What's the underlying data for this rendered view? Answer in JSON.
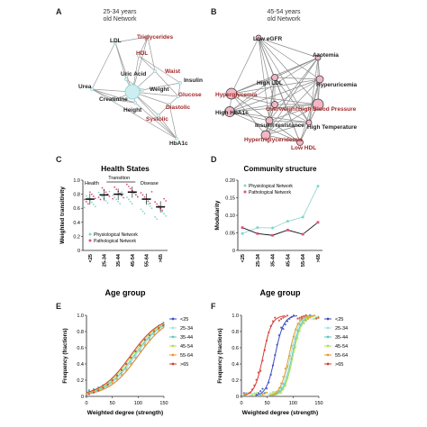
{
  "panel_a": {
    "letter": "A",
    "title_line1": "25-34 years",
    "title_line2": "old Network",
    "nodes": [
      {
        "label": "LDL",
        "color": "dark"
      },
      {
        "label": "Triglycerides",
        "color": "red"
      },
      {
        "label": "HDL",
        "color": "red"
      },
      {
        "label": "Waist",
        "color": "red"
      },
      {
        "label": "Uric Acid",
        "color": "dark"
      },
      {
        "label": "Insulin",
        "color": "dark"
      },
      {
        "label": "Urea",
        "color": "dark"
      },
      {
        "label": "Weight",
        "color": "dark"
      },
      {
        "label": "Glucose",
        "color": "red"
      },
      {
        "label": "Creatinine",
        "color": "dark"
      },
      {
        "label": "Height",
        "color": "dark"
      },
      {
        "label": "Diastolic",
        "color": "red"
      },
      {
        "label": "Systolic",
        "color": "red"
      },
      {
        "label": "HbA1c",
        "color": "dark"
      }
    ]
  },
  "panel_b": {
    "letter": "B",
    "title_line1": "45-54 years",
    "title_line2": "old Network",
    "nodes": [
      {
        "label": "Low eGFR",
        "color": "dark"
      },
      {
        "label": "Azotemia",
        "color": "dark"
      },
      {
        "label": "High LDL",
        "color": "dark"
      },
      {
        "label": "Hyperuricemia",
        "color": "dark"
      },
      {
        "label": "Hyperglycemia",
        "color": "red"
      },
      {
        "label": "High HbA1c",
        "color": "dark"
      },
      {
        "label": "Overweight",
        "color": "red"
      },
      {
        "label": "High Blood Pressure",
        "color": "red"
      },
      {
        "label": "Insulin resistance",
        "color": "dark"
      },
      {
        "label": "High Temperature",
        "color": "dark"
      },
      {
        "label": "Hypertriglyceridemia",
        "color": "red"
      },
      {
        "label": "Low HDL",
        "color": "red"
      }
    ]
  },
  "chart_data": [
    {
      "panel": "C",
      "type": "scatter",
      "title": "Health States",
      "ylabel": "Weighted transitivity",
      "xlabel": "Age group",
      "categories": [
        "<25",
        "25-34",
        "35-44",
        "45-54",
        "55-64",
        ">65"
      ],
      "ylim": [
        0,
        1
      ],
      "yticks": [
        "0",
        "0.2",
        "0.4",
        "0.6",
        "0.8",
        "1.0"
      ],
      "annotations": [
        "Health",
        "Transition",
        "Disease"
      ],
      "series": [
        {
          "name": "Physiological Network",
          "color": "#7fd6cf",
          "values": [
            0.7,
            0.75,
            0.74,
            0.74,
            0.6,
            0.52
          ]
        },
        {
          "name": "Pathological Network",
          "color": "#d9547a",
          "values": [
            0.74,
            0.8,
            0.81,
            0.85,
            0.76,
            0.66
          ]
        }
      ],
      "means": [
        0.73,
        0.79,
        0.8,
        0.83,
        0.73,
        0.62
      ]
    },
    {
      "panel": "D",
      "type": "line",
      "title": "Community structure",
      "ylabel": "Modularity",
      "xlabel": "Age group",
      "categories": [
        "<25",
        "25-34",
        "35-44",
        "45-54",
        "55-64",
        ">65"
      ],
      "ylim": [
        0,
        0.2
      ],
      "yticks": [
        "0",
        "0.05",
        "0.10",
        "0.15",
        "0.20"
      ],
      "series": [
        {
          "name": "Physiological Network",
          "color": "#7fd6cf",
          "values": [
            0.048,
            0.065,
            0.064,
            0.083,
            0.095,
            0.183
          ]
        },
        {
          "name": "Pathological Network",
          "color": "#d9547a",
          "values": [
            0.065,
            0.048,
            0.043,
            0.058,
            0.046,
            0.08
          ]
        }
      ]
    },
    {
      "panel": "E",
      "type": "scatter",
      "ylabel": "Frequency (fractions)",
      "xlabel": "Weighted degree (strength)",
      "xlim": [
        0,
        150
      ],
      "ylim": [
        0,
        1
      ],
      "xticks": [
        "0",
        "50",
        "100",
        "150"
      ],
      "yticks": [
        "0",
        "0.2",
        "0.4",
        "0.6",
        "0.8",
        "1.0"
      ],
      "series": [
        {
          "name": "<25",
          "color": "#3b4cc0",
          "midpoint": 100
        },
        {
          "name": "25-34",
          "color": "#9fe6ea",
          "midpoint": 95
        },
        {
          "name": "35-44",
          "color": "#5ec8c0",
          "midpoint": 92
        },
        {
          "name": "45-54",
          "color": "#b4e24a",
          "midpoint": 88
        },
        {
          "name": "55-64",
          "color": "#e89a2c",
          "midpoint": 100
        },
        {
          "name": ">65",
          "color": "#d63a2f",
          "midpoint": 85
        }
      ]
    },
    {
      "panel": "F",
      "type": "scatter",
      "ylabel": "Frequency (fractions)",
      "xlabel": "Weighted degree (strength)",
      "xlim": [
        0,
        150
      ],
      "ylim": [
        0,
        1
      ],
      "xticks": [
        "0",
        "50",
        "100",
        "150"
      ],
      "yticks": [
        "0",
        "0.2",
        "0.4",
        "0.6",
        "0.8",
        "1.0"
      ],
      "series": [
        {
          "name": "<25",
          "color": "#3b4cc0",
          "midpoint": 65
        },
        {
          "name": "25-34",
          "color": "#9fe6ea",
          "midpoint": 95
        },
        {
          "name": "35-44",
          "color": "#5ec8c0",
          "midpoint": 98
        },
        {
          "name": "45-54",
          "color": "#b4e24a",
          "midpoint": 100
        },
        {
          "name": "55-64",
          "color": "#e89a2c",
          "midpoint": 92
        },
        {
          "name": ">65",
          "color": "#d63a2f",
          "midpoint": 42
        }
      ]
    }
  ]
}
